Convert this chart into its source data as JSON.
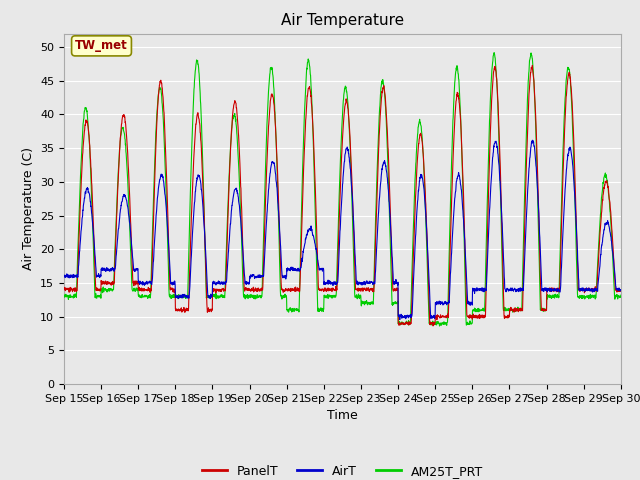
{
  "title": "Air Temperature",
  "ylabel": "Air Temperature (C)",
  "xlabel": "Time",
  "ylim": [
    0,
    52
  ],
  "yticks": [
    0,
    5,
    10,
    15,
    20,
    25,
    30,
    35,
    40,
    45,
    50
  ],
  "x_tick_labels": [
    "Sep 15",
    "Sep 16",
    "Sep 17",
    "Sep 18",
    "Sep 19",
    "Sep 20",
    "Sep 21",
    "Sep 22",
    "Sep 23",
    "Sep 24",
    "Sep 25",
    "Sep 26",
    "Sep 27",
    "Sep 28",
    "Sep 29",
    "Sep 30"
  ],
  "annotation_text": "TW_met",
  "background_color": "#e8e8e8",
  "colors": {
    "PanelT": "#cc0000",
    "AirT": "#0000cc",
    "AM25T_PRT": "#00cc00"
  },
  "title_fontsize": 11,
  "label_fontsize": 9,
  "tick_fontsize": 8
}
